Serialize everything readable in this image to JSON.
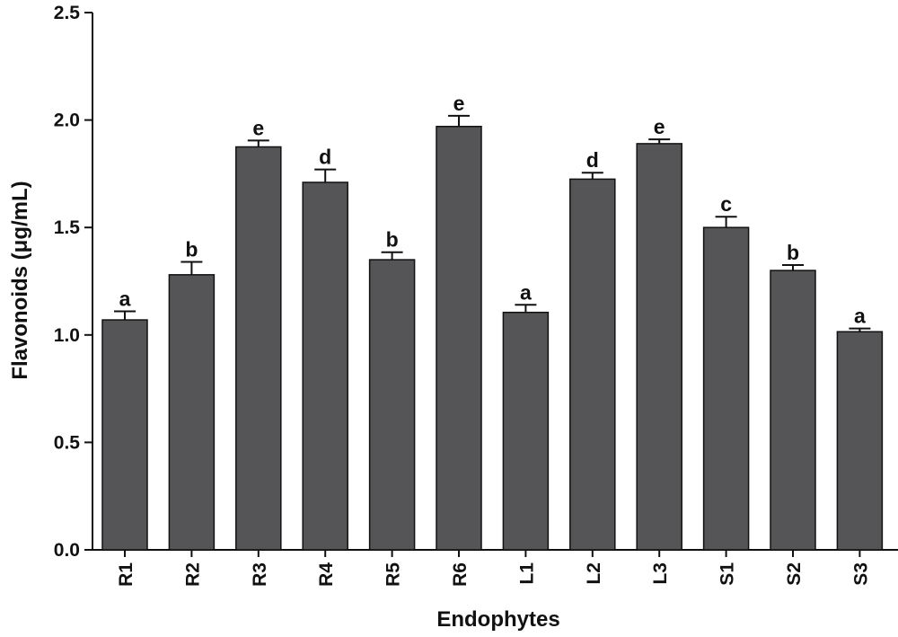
{
  "chart_data": {
    "type": "bar",
    "xlabel": "Endophytes",
    "ylabel": "Flavonoids (μg/mL)",
    "ylim": [
      0,
      2.5
    ],
    "yticks": [
      "0.0",
      "0.5",
      "1.0",
      "1.5",
      "2.0",
      "2.5"
    ],
    "categories": [
      "R1",
      "R2",
      "R3",
      "R4",
      "R5",
      "R6",
      "L1",
      "L2",
      "L3",
      "S1",
      "S2",
      "S3"
    ],
    "values": [
      1.07,
      1.28,
      1.875,
      1.71,
      1.35,
      1.97,
      1.105,
      1.725,
      1.89,
      1.5,
      1.3,
      1.015
    ],
    "errors": [
      0.04,
      0.06,
      0.03,
      0.06,
      0.035,
      0.05,
      0.035,
      0.03,
      0.02,
      0.05,
      0.025,
      0.015
    ],
    "significance": [
      "a",
      "b",
      "e",
      "d",
      "b",
      "e",
      "a",
      "d",
      "e",
      "c",
      "b",
      "a"
    ],
    "bar_color": "#555558",
    "grid": false
  }
}
